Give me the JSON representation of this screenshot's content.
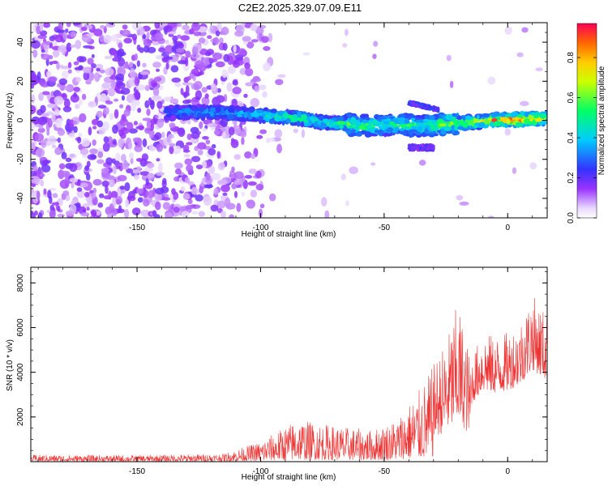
{
  "title": "C2E2.2025.329.07.09.E11",
  "chart_data": [
    {
      "type": "heatmap",
      "name": "spectrogram",
      "xlabel": "Height of straight line (km)",
      "ylabel": "Frequency (Hz)",
      "xlim": [
        -193,
        16
      ],
      "ylim": [
        -50,
        50
      ],
      "xticks": [
        -150,
        -100,
        -50,
        0
      ],
      "yticks": [
        -40,
        -20,
        0,
        20,
        40
      ],
      "colorbar": {
        "label": "Normalized spectral amplitude",
        "range": [
          0,
          0.97
        ],
        "ticks": [
          0,
          0.2,
          0.4,
          0.6,
          0.8
        ]
      },
      "ridge": [
        {
          "x": -135,
          "f": 4,
          "a": 0.25
        },
        {
          "x": -125,
          "f": 4,
          "a": 0.3
        },
        {
          "x": -115,
          "f": 4,
          "a": 0.3
        },
        {
          "x": -105,
          "f": 3,
          "a": 0.35
        },
        {
          "x": -95,
          "f": 2,
          "a": 0.45
        },
        {
          "x": -85,
          "f": 1,
          "a": 0.5
        },
        {
          "x": -75,
          "f": -1,
          "a": 0.45
        },
        {
          "x": -65,
          "f": -2,
          "a": 0.55
        },
        {
          "x": -55,
          "f": -3,
          "a": 0.45
        },
        {
          "x": -45,
          "f": -2,
          "a": 0.5
        },
        {
          "x": -35,
          "f": -3,
          "a": 0.45
        },
        {
          "x": -25,
          "f": -2,
          "a": 0.55
        },
        {
          "x": -15,
          "f": -1,
          "a": 0.6
        },
        {
          "x": -5,
          "f": 0,
          "a": 0.8
        },
        {
          "x": 5,
          "f": 0.5,
          "a": 0.95
        },
        {
          "x": 15,
          "f": 1,
          "a": 0.6
        }
      ]
    },
    {
      "type": "line",
      "name": "snr",
      "xlabel": "Height of straight line (km)",
      "ylabel": "SNR (10 * v/v)",
      "xlim": [
        -193,
        16
      ],
      "ylim": [
        0,
        8700
      ],
      "xticks": [
        -150,
        -100,
        -50,
        0
      ],
      "yticks": [
        2000,
        4000,
        6000,
        8000
      ],
      "color": "#ee3333",
      "envelope": [
        {
          "x": -193,
          "y": 300
        },
        {
          "x": -150,
          "y": 280
        },
        {
          "x": -115,
          "y": 350
        },
        {
          "x": -100,
          "y": 900
        },
        {
          "x": -85,
          "y": 1900
        },
        {
          "x": -70,
          "y": 1600
        },
        {
          "x": -55,
          "y": 1400
        },
        {
          "x": -45,
          "y": 1900
        },
        {
          "x": -35,
          "y": 3300
        },
        {
          "x": -25,
          "y": 5400
        },
        {
          "x": -20,
          "y": 7200
        },
        {
          "x": -15,
          "y": 4600
        },
        {
          "x": -10,
          "y": 5800
        },
        {
          "x": -5,
          "y": 5600
        },
        {
          "x": 0,
          "y": 5800
        },
        {
          "x": 5,
          "y": 6300
        },
        {
          "x": 10,
          "y": 7500
        },
        {
          "x": 16,
          "y": 6600
        }
      ]
    }
  ]
}
